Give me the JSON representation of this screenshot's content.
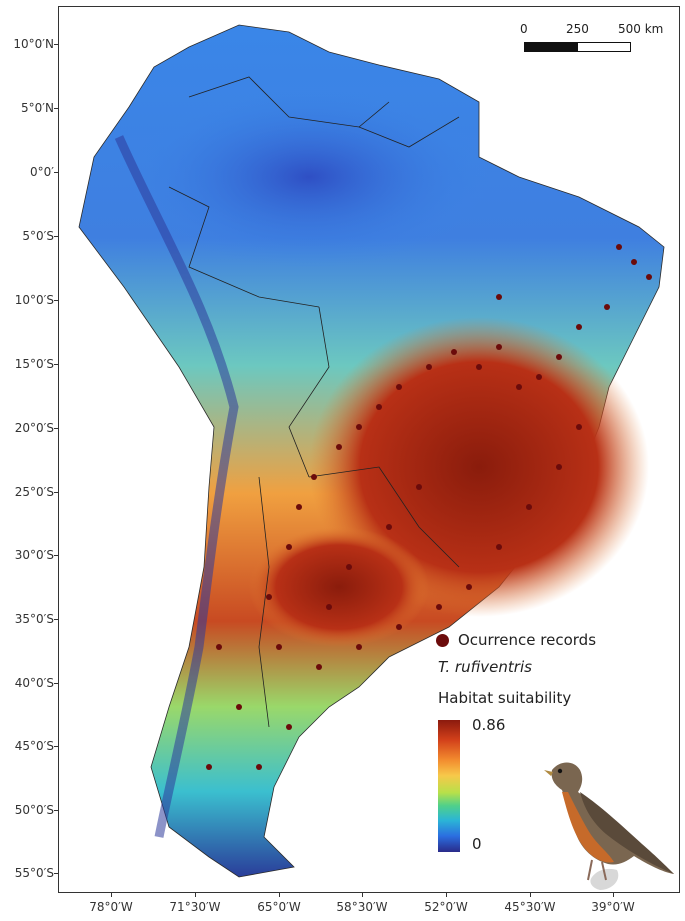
{
  "map": {
    "latitude_labels": [
      "10°0′N",
      "5°0′N",
      "0°0′",
      "5°0′S",
      "10°0′S",
      "15°0′S",
      "20°0′S",
      "25°0′S",
      "30°0′S",
      "35°0′S",
      "40°0′S",
      "45°0′S",
      "50°0′S",
      "55°0′S"
    ],
    "longitude_labels": [
      "78°0′W",
      "71°30′W",
      "65°0′W",
      "58°30′W",
      "52°0′W",
      "45°30′W",
      "39°0′W"
    ]
  },
  "scale_bar": {
    "tick_0": "0",
    "tick_250": "250",
    "tick_500": "500 km"
  },
  "legend": {
    "occurrence_label": "Ocurrence records",
    "species_name": "T. rufiventris",
    "suitability_title": "Habitat suitability",
    "max_value": "0.86",
    "min_value": "0",
    "occurrence_color": "#6b0b0b",
    "ramp_colors": [
      "#8b1a0e",
      "#d2401a",
      "#f28a2e",
      "#f7c84a",
      "#b8e04a",
      "#4fd08a",
      "#2bb5d6",
      "#2b6ee0",
      "#2a2b8a"
    ]
  }
}
